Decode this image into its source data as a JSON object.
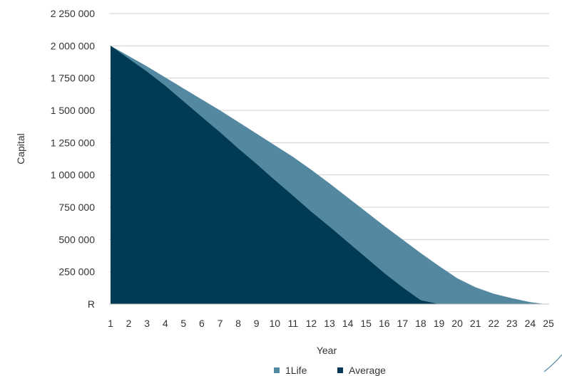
{
  "chart_data": {
    "type": "area",
    "title": "",
    "xlabel": "Year",
    "ylabel": "Capital",
    "ylim": [
      0,
      2250000
    ],
    "y_ticks": [
      0,
      250000,
      500000,
      750000,
      1000000,
      1250000,
      1500000,
      1750000,
      2000000,
      2250000
    ],
    "y_tick_labels": [
      "R",
      "250 000",
      "500 000",
      "750 000",
      "1 000 000",
      "1 250 000",
      "1 500 000",
      "1 750 000",
      "2 000 000",
      "2 250 000"
    ],
    "x_tick_labels": [
      "1",
      "2",
      "3",
      "4",
      "5",
      "6",
      "7",
      "8",
      "9",
      "10",
      "11",
      "12",
      "13",
      "14",
      "15",
      "16",
      "17",
      "18",
      "19",
      "20",
      "21",
      "22",
      "23",
      "24",
      "25"
    ],
    "grid": true,
    "legend_position": "bottom",
    "series": [
      {
        "name": "1Life",
        "color": "#5388a0",
        "x": [
          1,
          2,
          3,
          4,
          5,
          6,
          7,
          8,
          9,
          10,
          11,
          12,
          13,
          14,
          15,
          16,
          17,
          18,
          19,
          20,
          21,
          22,
          23,
          24,
          24.8
        ],
        "values": [
          2000000,
          1920000,
          1840000,
          1755000,
          1670000,
          1585000,
          1500000,
          1410000,
          1320000,
          1230000,
          1140000,
          1040000,
          935000,
          825000,
          715000,
          605000,
          500000,
          395000,
          295000,
          200000,
          130000,
          80000,
          45000,
          15000,
          0
        ]
      },
      {
        "name": "Average",
        "color": "#003a54",
        "x": [
          1,
          2,
          3,
          4,
          5,
          6,
          7,
          8,
          9,
          10,
          11,
          12,
          13,
          14,
          15,
          16,
          17,
          18,
          19,
          20,
          21,
          22
        ],
        "values": [
          2000000,
          1900000,
          1800000,
          1690000,
          1570000,
          1450000,
          1330000,
          1205000,
          1085000,
          960000,
          840000,
          715000,
          600000,
          480000,
          360000,
          240000,
          130000,
          30000,
          0,
          0,
          0,
          0
        ]
      }
    ]
  }
}
